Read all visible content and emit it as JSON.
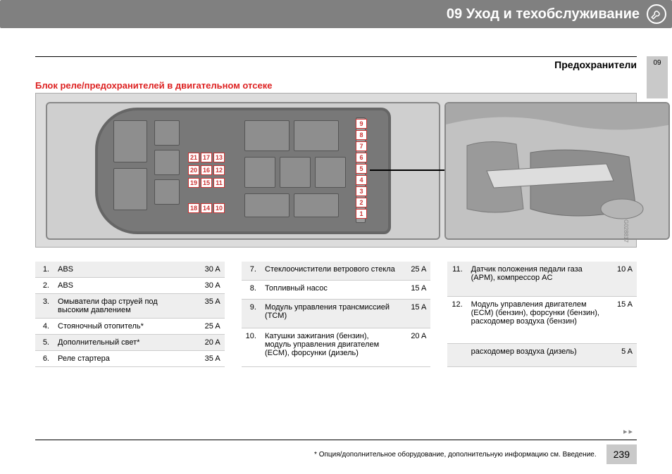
{
  "chapter_title": "09 Уход и техобслуживание",
  "subsection_title": "Предохранители",
  "side_tab": "09",
  "section_heading": "Блок реле/предохранителей в двигательном отсеке",
  "figure_code": "G028817",
  "fuse_numbers": [
    "1",
    "2",
    "3",
    "4",
    "5",
    "6",
    "7",
    "8",
    "9",
    "10",
    "11",
    "12",
    "13",
    "14",
    "15",
    "16",
    "17",
    "18",
    "19",
    "20",
    "21"
  ],
  "tables": {
    "col1": [
      {
        "n": "1.",
        "desc": "ABS",
        "amp": "30 A"
      },
      {
        "n": "2.",
        "desc": "ABS",
        "amp": "30 A"
      },
      {
        "n": "3.",
        "desc": "Омыватели фар струей под высоким давлением",
        "amp": "35 A"
      },
      {
        "n": "4.",
        "desc": "Стояночный отопитель*",
        "amp": "25 A"
      },
      {
        "n": "5.",
        "desc": "Дополнительный свет*",
        "amp": "20 A"
      },
      {
        "n": "6.",
        "desc": "Реле стартера",
        "amp": "35 A"
      }
    ],
    "col2": [
      {
        "n": "7.",
        "desc": "Стеклоочистители ветрового стекла",
        "amp": "25 A"
      },
      {
        "n": "8.",
        "desc": "Топливный насос",
        "amp": "15 A"
      },
      {
        "n": "9.",
        "desc": "Модуль управления трансмиссией (TCM)",
        "amp": "15 A"
      },
      {
        "n": "10.",
        "desc": "Катушки зажигания (бензин), модуль управления двигателем (ECM), форсунки (дизель)",
        "amp": "20 A"
      }
    ],
    "col3": [
      {
        "n": "11.",
        "desc": "Датчик положения педали газа (APM), компрессор AC",
        "amp": "10 A"
      },
      {
        "n": "12.",
        "desc": "Модуль управления двигателем (ECM) (бензин), форсунки (бензин), расходомер воздуха (бензин)",
        "amp": "15 A"
      },
      {
        "n": "",
        "desc": "расходомер воздуха (дизель)",
        "amp": "5 A"
      }
    ]
  },
  "footnote": "* Опция/дополнительное оборудование, дополнительную информацию см. Введение.",
  "page_number": "239",
  "continue": "▸▸"
}
